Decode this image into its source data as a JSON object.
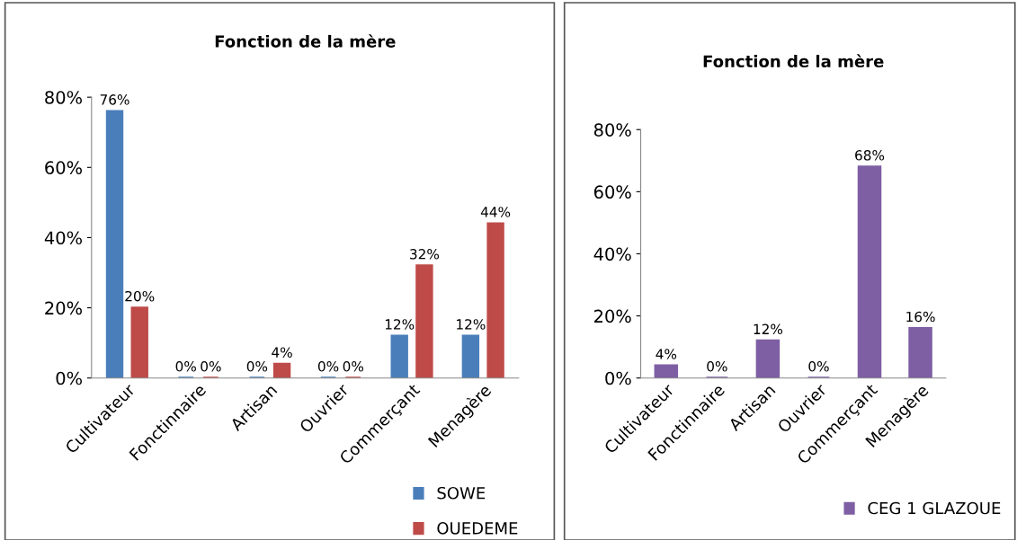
{
  "chart_data": [
    {
      "type": "bar",
      "title": "Fonction de la mère",
      "categories": [
        "Cultivateur",
        "Fonctinnaire",
        "Artisan",
        "Ouvrier",
        "Commerçant",
        "Menagère"
      ],
      "series": [
        {
          "name": "SOWE",
          "color": "#4a7ebb",
          "values": [
            76,
            0,
            0,
            0,
            12,
            12
          ],
          "value_labels": [
            "76%",
            "0%",
            "0%",
            "0%",
            "12%",
            "12%"
          ]
        },
        {
          "name": "OUEDEME",
          "color": "#be4b48",
          "values": [
            20,
            0,
            4,
            0,
            32,
            44
          ],
          "value_labels": [
            "20%",
            "0%",
            "4%",
            "0%",
            "32%",
            "44%"
          ]
        }
      ],
      "ylim": [
        0,
        80
      ],
      "yticks": [
        {
          "value": 0,
          "label": "0%"
        },
        {
          "value": 20,
          "label": "20%"
        },
        {
          "value": 40,
          "label": "40%"
        },
        {
          "value": 60,
          "label": "60%"
        },
        {
          "value": 80,
          "label": "80%"
        }
      ],
      "grid": false,
      "legend": "bottom right"
    },
    {
      "type": "bar",
      "title": "Fonction de la mère",
      "categories": [
        "Cultivateur",
        "Fonctinnaire",
        "Artisan",
        "Ouvrier",
        "Commerçant",
        "Menagère"
      ],
      "series": [
        {
          "name": "CEG 1 GLAZOUE",
          "color": "#7e5fa4",
          "values": [
            4,
            0,
            12,
            0,
            68,
            16
          ],
          "value_labels": [
            "4%",
            "0%",
            "12%",
            "0%",
            "68%",
            "16%"
          ]
        }
      ],
      "ylim": [
        0,
        80
      ],
      "yticks": [
        {
          "value": 0,
          "label": "0%"
        },
        {
          "value": 20,
          "label": "20%"
        },
        {
          "value": 40,
          "label": "40%"
        },
        {
          "value": 60,
          "label": "60%"
        },
        {
          "value": 80,
          "label": "80%"
        }
      ],
      "grid": false,
      "legend": "bottom right"
    }
  ]
}
